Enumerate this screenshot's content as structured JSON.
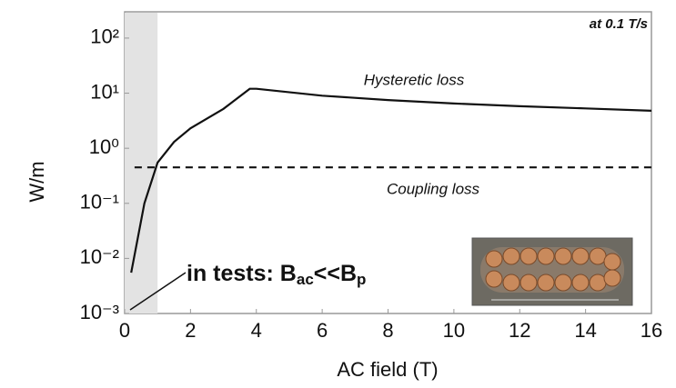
{
  "chart_data": {
    "type": "line",
    "x_label": "AC field (T)",
    "y_label": "W/m",
    "log_y": true,
    "grid": false,
    "xlim": [
      0,
      16
    ],
    "xticks": [
      0,
      2,
      4,
      6,
      8,
      10,
      12,
      14,
      16
    ],
    "ylim": [
      0.001,
      300
    ],
    "yticks": [
      {
        "value": 0.001,
        "label": "10⁻³"
      },
      {
        "value": 0.01,
        "label": "10⁻²"
      },
      {
        "value": 0.1,
        "label": "10⁻¹"
      },
      {
        "value": 1,
        "label": "10⁰"
      },
      {
        "value": 10,
        "label": "10¹"
      },
      {
        "value": 100,
        "label": "10²"
      }
    ],
    "shaded_x": [
      0,
      1
    ],
    "series": [
      {
        "name": "Hysteretic loss",
        "color": "#111111",
        "dashed": false,
        "x": [
          0.2,
          0.6,
          1,
          1.5,
          2,
          3,
          3.8,
          4,
          6,
          8,
          10,
          12,
          14,
          16
        ],
        "values": [
          0.0055,
          0.1,
          0.55,
          1.3,
          2.3,
          5.2,
          12,
          12,
          9,
          7.5,
          6.5,
          5.8,
          5.3,
          4.8
        ]
      },
      {
        "name": "Coupling loss",
        "color": "#111111",
        "dashed": true,
        "x": [
          0.3,
          16
        ],
        "values": [
          0.45,
          0.45
        ]
      }
    ],
    "annotations": {
      "rate": "at 0.1 T/s",
      "test_note": [
        "in tests: B",
        "ac",
        "<<B",
        "p"
      ]
    }
  }
}
